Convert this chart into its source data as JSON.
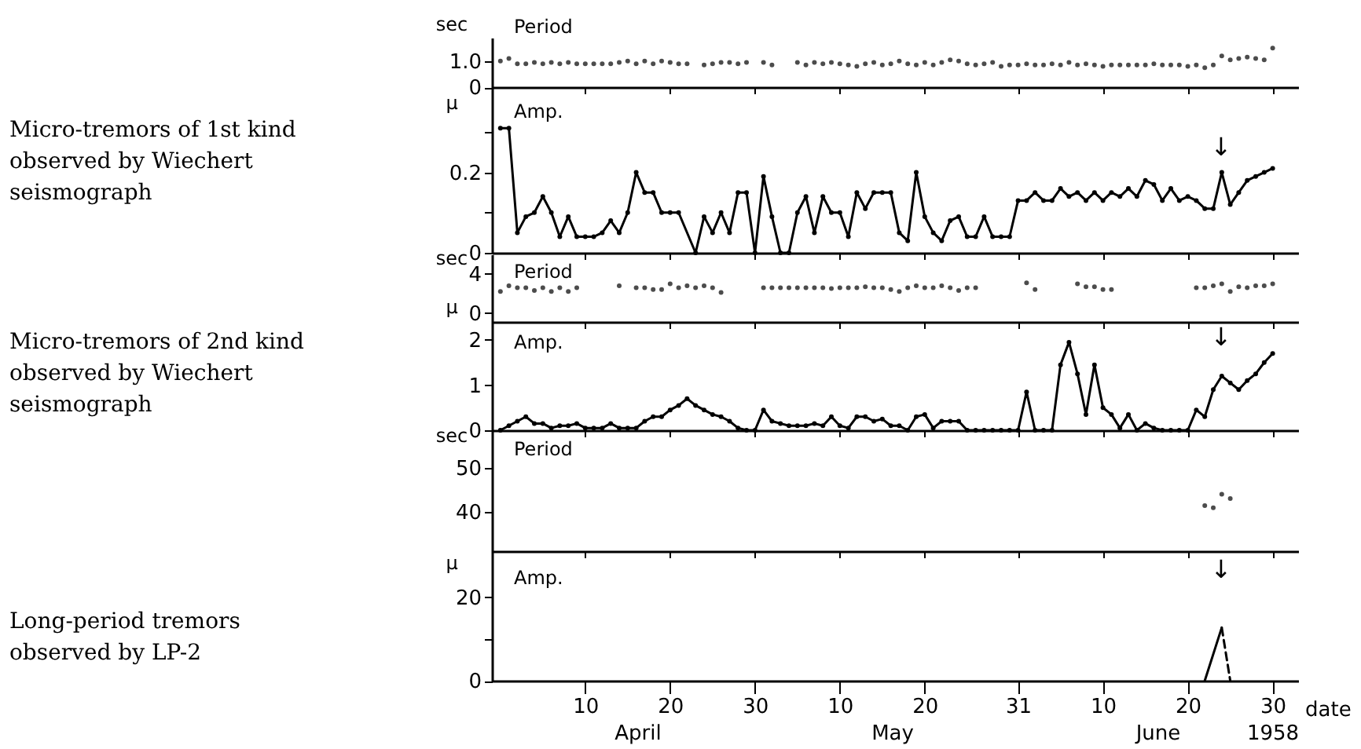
{
  "chart_data": [
    {
      "type": "scatter",
      "title": "Period",
      "ylabel": "sec",
      "xlim": [
        "1958-03-30",
        "1958-07-03"
      ],
      "xticks": [
        "1958-04-10",
        "1958-04-20",
        "1958-04-30",
        "1958-05-10",
        "1958-05-20",
        "1958-05-31",
        "1958-06-10",
        "1958-06-20",
        "1958-06-30"
      ],
      "ylim": [
        0,
        1.9
      ],
      "yticks": [
        0,
        {
          "value": 1,
          "label": "1.0"
        }
      ],
      "tick_labels": "y",
      "marker": "circle",
      "series": [
        {
          "color": "#000000",
          "x": [
            "1958-03-31",
            "1958-04-01",
            "1958-04-02",
            "1958-04-03",
            "1958-04-04",
            "1958-04-05",
            "1958-04-06",
            "1958-04-07",
            "1958-04-08",
            "1958-04-09",
            "1958-04-10",
            "1958-04-11",
            "1958-04-12",
            "1958-04-13",
            "1958-04-14",
            "1958-04-15",
            "1958-04-16",
            "1958-04-17",
            "1958-04-18",
            "1958-04-19",
            "1958-04-20",
            "1958-04-21",
            "1958-04-22",
            "1958-04-24",
            "1958-04-25",
            "1958-04-26",
            "1958-04-27",
            "1958-04-28",
            "1958-04-29",
            "1958-05-01",
            "1958-05-02",
            "1958-05-05",
            "1958-05-06",
            "1958-05-07",
            "1958-05-08",
            "1958-05-09",
            "1958-05-10",
            "1958-05-11",
            "1958-05-12",
            "1958-05-13",
            "1958-05-14",
            "1958-05-15",
            "1958-05-16",
            "1958-05-17",
            "1958-05-18",
            "1958-05-19",
            "1958-05-20",
            "1958-05-21",
            "1958-05-22",
            "1958-05-23",
            "1958-05-24",
            "1958-05-25",
            "1958-05-26",
            "1958-05-27",
            "1958-05-28",
            "1958-05-29",
            "1958-05-30",
            "1958-05-31",
            "1958-06-01",
            "1958-06-02",
            "1958-06-03",
            "1958-06-04",
            "1958-06-05",
            "1958-06-06",
            "1958-06-07",
            "1958-06-08",
            "1958-06-09",
            "1958-06-10",
            "1958-06-11",
            "1958-06-12",
            "1958-06-13",
            "1958-06-14",
            "1958-06-15",
            "1958-06-16",
            "1958-06-17",
            "1958-06-18",
            "1958-06-19",
            "1958-06-20",
            "1958-06-21",
            "1958-06-22",
            "1958-06-23",
            "1958-06-24",
            "1958-06-25",
            "1958-06-26",
            "1958-06-27",
            "1958-06-28",
            "1958-06-29",
            "1958-06-30"
          ],
          "values": [
            1.0,
            1.1,
            0.9,
            0.9,
            0.95,
            0.9,
            0.95,
            0.9,
            0.95,
            0.9,
            0.9,
            0.9,
            0.9,
            0.9,
            0.95,
            1.0,
            0.9,
            1.0,
            0.9,
            1.0,
            0.95,
            0.9,
            0.9,
            0.85,
            0.9,
            0.95,
            0.95,
            0.9,
            0.95,
            0.95,
            0.85,
            0.95,
            0.85,
            0.95,
            0.9,
            0.95,
            0.9,
            0.85,
            0.8,
            0.9,
            0.95,
            0.85,
            0.9,
            1.0,
            0.9,
            0.85,
            0.95,
            0.85,
            0.95,
            1.05,
            1.0,
            0.9,
            0.85,
            0.9,
            0.95,
            0.8,
            0.85,
            0.85,
            0.9,
            0.85,
            0.85,
            0.9,
            0.85,
            0.95,
            0.85,
            0.9,
            0.85,
            0.8,
            0.85,
            0.85,
            0.85,
            0.85,
            0.85,
            0.9,
            0.85,
            0.85,
            0.85,
            0.8,
            0.85,
            0.75,
            0.85,
            1.2,
            1.05,
            1.1,
            1.15,
            1.1,
            1.05,
            1.5
          ]
        }
      ]
    },
    {
      "type": "line",
      "title": "Amp.",
      "ylabel": "μ",
      "xlim": [
        "1958-03-30",
        "1958-07-03"
      ],
      "xticks": [
        "1958-04-10",
        "1958-04-20",
        "1958-04-30",
        "1958-05-10",
        "1958-05-20",
        "1958-05-31",
        "1958-06-10",
        "1958-06-20",
        "1958-06-30"
      ],
      "ylim": [
        0,
        0.41
      ],
      "yticks": [
        0,
        {
          "value": 0.1,
          "label": null
        },
        0.2,
        {
          "value": 0.3,
          "label": null
        }
      ],
      "tick_labels": "y",
      "marker": "circle",
      "annotations": [
        "Micro-tremors of 1st kind observed by Wiechert seismograph",
        "↓"
      ],
      "series": [
        {
          "color": "#000000",
          "x": [
            "1958-03-31",
            "1958-04-01",
            "1958-04-02",
            "1958-04-03",
            "1958-04-04",
            "1958-04-05",
            "1958-04-06",
            "1958-04-07",
            "1958-04-08",
            "1958-04-09",
            "1958-04-10",
            "1958-04-11",
            "1958-04-12",
            "1958-04-13",
            "1958-04-14",
            "1958-04-15",
            "1958-04-16",
            "1958-04-17",
            "1958-04-18",
            "1958-04-19",
            "1958-04-20",
            "1958-04-21",
            "1958-04-23",
            "1958-04-24",
            "1958-04-25",
            "1958-04-26",
            "1958-04-27",
            "1958-04-28",
            "1958-04-29",
            "1958-04-30",
            "1958-05-01",
            "1958-05-02",
            "1958-05-03",
            "1958-05-04",
            "1958-05-05",
            "1958-05-06",
            "1958-05-07",
            "1958-05-08",
            "1958-05-09",
            "1958-05-10",
            "1958-05-11",
            "1958-05-12",
            "1958-05-13",
            "1958-05-14",
            "1958-05-15",
            "1958-05-16",
            "1958-05-17",
            "1958-05-18",
            "1958-05-19",
            "1958-05-20",
            "1958-05-21",
            "1958-05-22",
            "1958-05-23",
            "1958-05-24",
            "1958-05-25",
            "1958-05-26",
            "1958-05-27",
            "1958-05-28",
            "1958-05-29",
            "1958-05-30",
            "1958-05-31",
            "1958-06-01",
            "1958-06-02",
            "1958-06-03",
            "1958-06-04",
            "1958-06-05",
            "1958-06-06",
            "1958-06-07",
            "1958-06-08",
            "1958-06-09",
            "1958-06-10",
            "1958-06-11",
            "1958-06-12",
            "1958-06-13",
            "1958-06-14",
            "1958-06-15",
            "1958-06-16",
            "1958-06-17",
            "1958-06-18",
            "1958-06-19",
            "1958-06-20",
            "1958-06-21",
            "1958-06-22",
            "1958-06-23",
            "1958-06-24",
            "1958-06-25",
            "1958-06-26",
            "1958-06-27",
            "1958-06-28",
            "1958-06-29",
            "1958-06-30"
          ],
          "values": [
            0.31,
            0.31,
            0.05,
            0.09,
            0.1,
            0.14,
            0.1,
            0.04,
            0.09,
            0.04,
            0.04,
            0.04,
            0.05,
            0.08,
            0.05,
            0.1,
            0.2,
            0.15,
            0.15,
            0.1,
            0.1,
            0.1,
            0,
            0.09,
            0.05,
            0.1,
            0.05,
            0.15,
            0.15,
            0,
            0.19,
            0.09,
            0,
            0,
            0.1,
            0.14,
            0.05,
            0.14,
            0.1,
            0.1,
            0.04,
            0.15,
            0.11,
            0.15,
            0.15,
            0.15,
            0.05,
            0.03,
            0.2,
            0.09,
            0.05,
            0.03,
            0.08,
            0.09,
            0.04,
            0.04,
            0.09,
            0.04,
            0.04,
            0.04,
            0.13,
            0.13,
            0.15,
            0.13,
            0.13,
            0.16,
            0.14,
            0.15,
            0.13,
            0.15,
            0.13,
            0.15,
            0.14,
            0.16,
            0.14,
            0.18,
            0.17,
            0.13,
            0.16,
            0.13,
            0.14,
            0.13,
            0.11,
            0.11,
            0.2,
            0.12,
            0.15,
            0.18,
            0.19,
            0.2,
            0.21
          ]
        }
      ]
    },
    {
      "type": "scatter",
      "title": "Period",
      "ylabel": "sec",
      "xlim": [
        "1958-03-30",
        "1958-07-03"
      ],
      "xticks": [
        "1958-04-10",
        "1958-04-20",
        "1958-04-30",
        "1958-05-10",
        "1958-05-20",
        "1958-05-31",
        "1958-06-10",
        "1958-06-20",
        "1958-06-30"
      ],
      "ylim": [
        -0.9,
        6
      ],
      "yticks": [
        0,
        4
      ],
      "tick_labels": "y",
      "marker": "circle",
      "series": [
        {
          "color": "#000000",
          "x": [
            "1958-03-31",
            "1958-04-01",
            "1958-04-02",
            "1958-04-03",
            "1958-04-04",
            "1958-04-05",
            "1958-04-06",
            "1958-04-07",
            "1958-04-08",
            "1958-04-09",
            "1958-04-14",
            "1958-04-16",
            "1958-04-17",
            "1958-04-18",
            "1958-04-19",
            "1958-04-20",
            "1958-04-21",
            "1958-04-22",
            "1958-04-23",
            "1958-04-24",
            "1958-04-25",
            "1958-04-26",
            "1958-05-01",
            "1958-05-02",
            "1958-05-03",
            "1958-05-04",
            "1958-05-05",
            "1958-05-06",
            "1958-05-07",
            "1958-05-08",
            "1958-05-09",
            "1958-05-10",
            "1958-05-11",
            "1958-05-12",
            "1958-05-13",
            "1958-05-14",
            "1958-05-15",
            "1958-05-16",
            "1958-05-17",
            "1958-05-18",
            "1958-05-19",
            "1958-05-20",
            "1958-05-21",
            "1958-05-22",
            "1958-05-23",
            "1958-05-24",
            "1958-05-25",
            "1958-05-26",
            "1958-06-01",
            "1958-06-02",
            "1958-06-07",
            "1958-06-08",
            "1958-06-09",
            "1958-06-10",
            "1958-06-11",
            "1958-06-21",
            "1958-06-22",
            "1958-06-23",
            "1958-06-24",
            "1958-06-25",
            "1958-06-26",
            "1958-06-27",
            "1958-06-28",
            "1958-06-29",
            "1958-06-30"
          ],
          "values": [
            2.2,
            2.8,
            2.6,
            2.6,
            2.3,
            2.6,
            2.2,
            2.6,
            2.2,
            2.6,
            2.8,
            2.6,
            2.6,
            2.4,
            2.4,
            3.0,
            2.6,
            2.8,
            2.6,
            2.8,
            2.6,
            2.1,
            2.6,
            2.6,
            2.6,
            2.6,
            2.6,
            2.6,
            2.6,
            2.6,
            2.5,
            2.6,
            2.6,
            2.6,
            2.7,
            2.6,
            2.6,
            2.4,
            2.2,
            2.6,
            2.8,
            2.6,
            2.6,
            2.8,
            2.6,
            2.3,
            2.6,
            2.6,
            3.1,
            2.4,
            3.0,
            2.7,
            2.7,
            2.4,
            2.4,
            2.6,
            2.6,
            2.8,
            3.0,
            2.2,
            2.7,
            2.6,
            2.8,
            2.8,
            3.0
          ]
        }
      ]
    },
    {
      "type": "line",
      "title": "Amp.",
      "ylabel": "μ",
      "xlim": [
        "1958-03-30",
        "1958-07-03"
      ],
      "xticks": [
        "1958-04-10",
        "1958-04-20",
        "1958-04-30",
        "1958-05-10",
        "1958-05-20",
        "1958-05-31",
        "1958-06-10",
        "1958-06-20",
        "1958-06-30"
      ],
      "ylim": [
        0,
        2.4
      ],
      "yticks": [
        0,
        1,
        2
      ],
      "tick_labels": "y",
      "marker": "circle",
      "annotations": [
        "Micro-tremors of 2nd kind observed by Wiechert seismograph",
        "↓"
      ],
      "series": [
        {
          "color": "#000000",
          "x": [
            "1958-03-31",
            "1958-04-01",
            "1958-04-02",
            "1958-04-03",
            "1958-04-04",
            "1958-04-05",
            "1958-04-06",
            "1958-04-07",
            "1958-04-08",
            "1958-04-09",
            "1958-04-10",
            "1958-04-11",
            "1958-04-12",
            "1958-04-13",
            "1958-04-14",
            "1958-04-15",
            "1958-04-16",
            "1958-04-17",
            "1958-04-18",
            "1958-04-19",
            "1958-04-20",
            "1958-04-21",
            "1958-04-22",
            "1958-04-23",
            "1958-04-24",
            "1958-04-25",
            "1958-04-26",
            "1958-04-27",
            "1958-04-28",
            "1958-04-29",
            "1958-04-30",
            "1958-05-01",
            "1958-05-02",
            "1958-05-03",
            "1958-05-04",
            "1958-05-05",
            "1958-05-06",
            "1958-05-07",
            "1958-05-08",
            "1958-05-09",
            "1958-05-10",
            "1958-05-11",
            "1958-05-12",
            "1958-05-13",
            "1958-05-14",
            "1958-05-15",
            "1958-05-16",
            "1958-05-17",
            "1958-05-18",
            "1958-05-19",
            "1958-05-20",
            "1958-05-21",
            "1958-05-22",
            "1958-05-23",
            "1958-05-24",
            "1958-05-25",
            "1958-05-26",
            "1958-05-27",
            "1958-05-28",
            "1958-05-29",
            "1958-05-30",
            "1958-05-31",
            "1958-06-01",
            "1958-06-02",
            "1958-06-03",
            "1958-06-04",
            "1958-06-05",
            "1958-06-06",
            "1958-06-07",
            "1958-06-08",
            "1958-06-09",
            "1958-06-10",
            "1958-06-11",
            "1958-06-12",
            "1958-06-13",
            "1958-06-14",
            "1958-06-15",
            "1958-06-16",
            "1958-06-17",
            "1958-06-18",
            "1958-06-19",
            "1958-06-20",
            "1958-06-21",
            "1958-06-22",
            "1958-06-23",
            "1958-06-24",
            "1958-06-25",
            "1958-06-26",
            "1958-06-27",
            "1958-06-28",
            "1958-06-29",
            "1958-06-30"
          ],
          "values": [
            0,
            0.1,
            0.2,
            0.3,
            0.15,
            0.15,
            0.05,
            0.1,
            0.1,
            0.15,
            0.05,
            0.05,
            0.05,
            0.15,
            0.05,
            0.05,
            0.05,
            0.2,
            0.3,
            0.3,
            0.45,
            0.55,
            0.7,
            0.55,
            0.45,
            0.35,
            0.3,
            0.2,
            0.05,
            0,
            0,
            0.45,
            0.2,
            0.15,
            0.1,
            0.1,
            0.1,
            0.15,
            0.1,
            0.3,
            0.1,
            0.05,
            0.3,
            0.3,
            0.2,
            0.25,
            0.1,
            0.1,
            0,
            0.3,
            0.35,
            0.05,
            0.2,
            0.2,
            0.2,
            0,
            0,
            0,
            0,
            0,
            0,
            0,
            0.85,
            0,
            0,
            0,
            1.45,
            1.95,
            1.25,
            0.35,
            1.45,
            0.5,
            0.35,
            0.05,
            0.35,
            0,
            0.15,
            0.05,
            0,
            0,
            0,
            0,
            0.45,
            0.3,
            0.9,
            1.2,
            1.05,
            0.9,
            1.1,
            1.25,
            1.5,
            1.7
          ]
        }
      ]
    },
    {
      "type": "scatter",
      "title": "Period",
      "ylabel": "sec",
      "xlim": [
        "1958-03-30",
        "1958-07-03"
      ],
      "xticks": [
        "1958-04-10",
        "1958-04-20",
        "1958-04-30",
        "1958-05-10",
        "1958-05-20",
        "1958-05-31",
        "1958-06-10",
        "1958-06-20",
        "1958-06-30"
      ],
      "ylim": [
        31,
        58.6
      ],
      "yticks": [
        40,
        50
      ],
      "tick_labels": "y",
      "marker": "circle",
      "series": [
        {
          "color": "#000000",
          "x": [
            "1958-06-22",
            "1958-06-23",
            "1958-06-24",
            "1958-06-25"
          ],
          "values": [
            41.4,
            40.9,
            44,
            43
          ]
        }
      ]
    },
    {
      "type": "line",
      "title": "Amp.",
      "ylabel": "μ",
      "xlabel": "date",
      "xlim": [
        "1958-03-30",
        "1958-07-03"
      ],
      "ylim": [
        0,
        31
      ],
      "yticks": [
        0,
        {
          "value": 10,
          "label": null
        },
        20
      ],
      "marker": "none",
      "xticks": [
        {
          "value": "1958-04-10",
          "label": "10"
        },
        {
          "value": "1958-04-20",
          "label": "20"
        },
        {
          "value": "1958-04-30",
          "label": "30"
        },
        {
          "value": "1958-05-10",
          "label": "10"
        },
        {
          "value": "1958-05-20",
          "label": "20"
        },
        {
          "value": "1958-05-31",
          "label": "31"
        },
        {
          "value": "1958-06-10",
          "label": "10"
        },
        {
          "value": "1958-06-20",
          "label": "20"
        },
        {
          "value": "1958-06-30",
          "label": "30"
        }
      ],
      "annotations": [
        "Long-period tremors observed by LP-2",
        "↓",
        "April",
        "May",
        "June",
        "1958"
      ],
      "series": [
        {
          "color": "#000000",
          "x": [
            "1958-06-22",
            "1958-06-24"
          ],
          "values": [
            0,
            12.7
          ]
        },
        {
          "color": "#000000",
          "line_style": "dashed",
          "x": [
            "1958-06-24",
            "1958-06-25"
          ],
          "values": [
            12.7,
            0
          ]
        }
      ]
    }
  ]
}
